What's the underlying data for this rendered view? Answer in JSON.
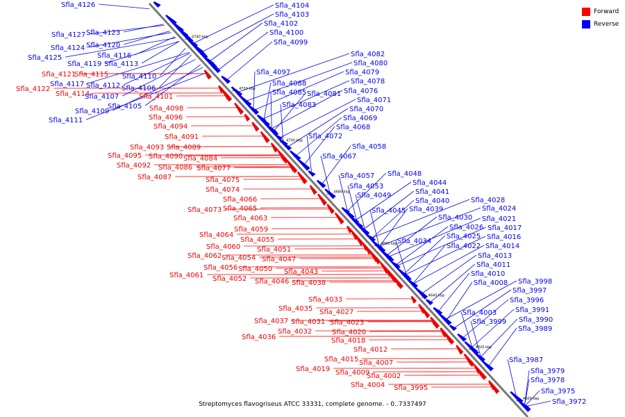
{
  "caption": "Streptomyces flavogriseus ATCC 33331, complete genome. - 0..7337497",
  "legend": [
    {
      "label": "Forward",
      "color": "#ff0000"
    },
    {
      "label": "Reverse",
      "color": "#0000ff"
    }
  ],
  "colors": {
    "forward": "#ee0000",
    "reverse": "#0000ee",
    "backbone": "#777777"
  },
  "scale_ticks": [
    "4740 kbp",
    "4720 kbp",
    "4700 kbp",
    "4680 kbp",
    "4660 kbp",
    "4640 kbp",
    "4620 kbp",
    "4600 kbp"
  ],
  "forward_genes": [
    "Sfla_4121",
    "Sfla_4115",
    "Sfla_4114",
    "Sfla_4122",
    "Sfla_4101",
    "Sfla_4098",
    "Sfla_4096",
    "Sfla_4094",
    "Sfla_4091",
    "Sfla_4093",
    "Sfla_4089",
    "Sfla_4095",
    "Sfla_4090",
    "Sfla_4084",
    "Sfla_4092",
    "Sfla_4086",
    "Sfla_4077",
    "Sfla_4087",
    "Sfla_4075",
    "Sfla_4074",
    "Sfla_4066",
    "Sfla_4073",
    "Sfla_4065",
    "Sfla_4063",
    "Sfla_4059",
    "Sfla_4064",
    "Sfla_4055",
    "Sfla_4060",
    "Sfla_4051",
    "Sfla_4062",
    "Sfla_4054",
    "Sfla_4047",
    "Sfla_4056",
    "Sfla_4050",
    "Sfla_4043",
    "Sfla_4061",
    "Sfla_4052",
    "Sfla_4046",
    "Sfla_4038",
    "Sfla_4033",
    "Sfla_4035",
    "Sfla_4027",
    "Sfla_4037",
    "Sfla_4031",
    "Sfla_4023",
    "Sfla_4032",
    "Sfla_4020",
    "Sfla_4036",
    "Sfla_4018",
    "Sfla_4012",
    "Sfla_4015",
    "Sfla_4007",
    "Sfla_4019",
    "Sfla_4009",
    "Sfla_4002",
    "Sfla_4004",
    "Sfla_3995"
  ],
  "reverse_genes": [
    "Sfla_4126",
    "Sfla_4127",
    "Sfla_4123",
    "Sfla_4120",
    "Sfla_4124",
    "Sfla_4125",
    "Sfla_4116",
    "Sfla_4119",
    "Sfla_4113",
    "Sfla_4110",
    "Sfla_4117",
    "Sfla_4112",
    "Sfla_4106",
    "Sfla_4107",
    "Sfla_4105",
    "Sfla_4109",
    "Sfla_4111",
    "Sfla_4104",
    "Sfla_4103",
    "Sfla_4102",
    "Sfla_4100",
    "Sfla_4099",
    "Sfla_4097",
    "Sfla_4088",
    "Sfla_4085",
    "Sfla_4083",
    "Sfla_4082",
    "Sfla_4080",
    "Sfla_4079",
    "Sfla_4078",
    "Sfla_4081",
    "Sfla_4076",
    "Sfla_4071",
    "Sfla_4070",
    "Sfla_4069",
    "Sfla_4068",
    "Sfla_4072",
    "Sfla_4058",
    "Sfla_4067",
    "Sfla_4057",
    "Sfla_4048",
    "Sfla_4044",
    "Sfla_4053",
    "Sfla_4041",
    "Sfla_4049",
    "Sfla_4040",
    "Sfla_4045",
    "Sfla_4039",
    "Sfla_4028",
    "Sfla_4024",
    "Sfla_4030",
    "Sfla_4021",
    "Sfla_4026",
    "Sfla_4017",
    "Sfla_4025",
    "Sfla_4016",
    "Sfla_4034",
    "Sfla_4022",
    "Sfla_4014",
    "Sfla_4013",
    "Sfla_4011",
    "Sfla_4010",
    "Sfla_4008",
    "Sfla_3998",
    "Sfla_3997",
    "Sfla_3996",
    "Sfla_4003",
    "Sfla_3991",
    "Sfla_3999",
    "Sfla_3990",
    "Sfla_3989",
    "Sfla_3987",
    "Sfla_3979",
    "Sfla_3978",
    "Sfla_3975",
    "Sfla_3972"
  ]
}
